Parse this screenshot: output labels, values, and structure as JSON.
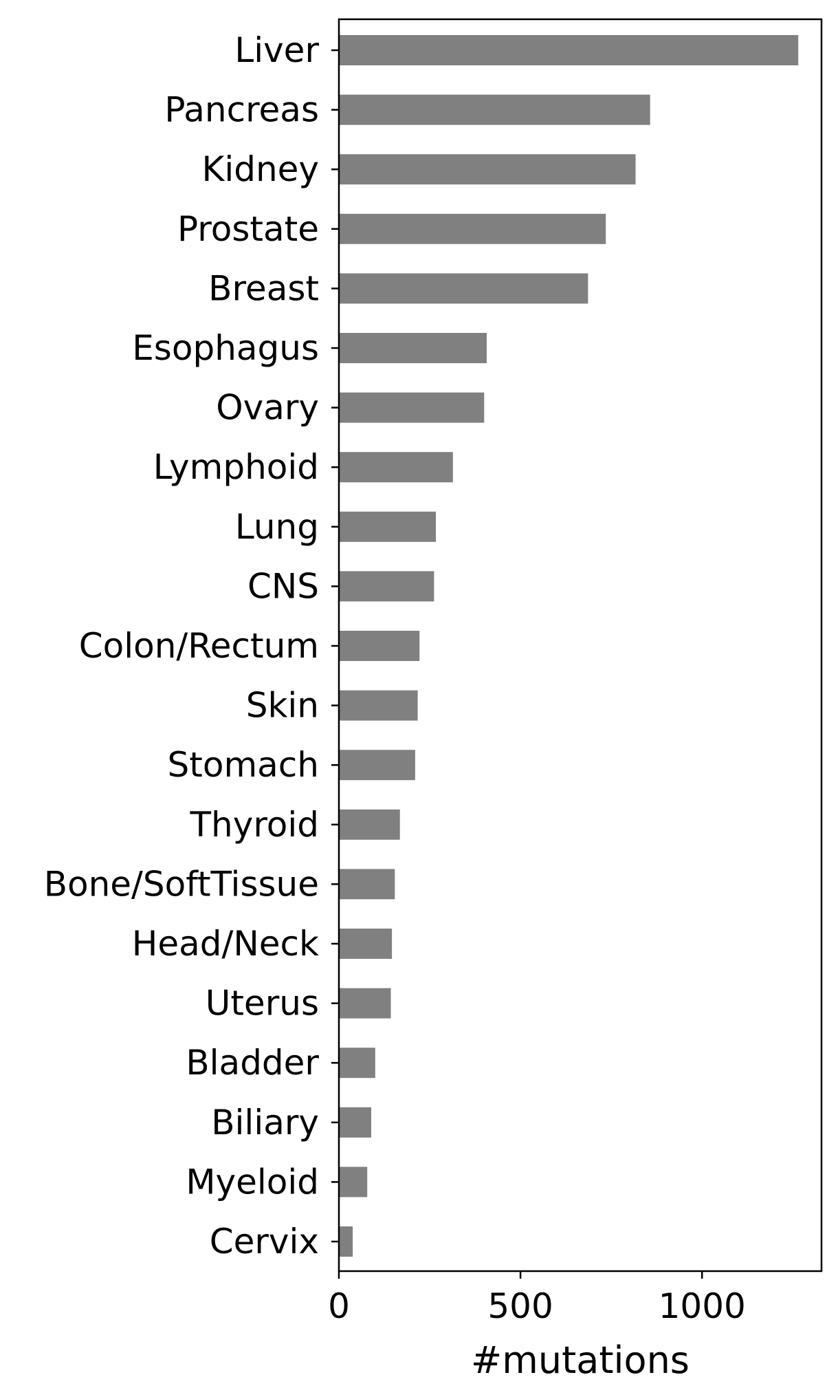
{
  "chart_data": {
    "type": "bar",
    "orientation": "horizontal",
    "categories": [
      "Liver",
      "Pancreas",
      "Kidney",
      "Prostate",
      "Breast",
      "Esophagus",
      "Ovary",
      "Lymphoid",
      "Lung",
      "CNS",
      "Colon/Rectum",
      "Skin",
      "Stomach",
      "Thyroid",
      "Bone/SoftTissue",
      "Head/Neck",
      "Uterus",
      "Bladder",
      "Biliary",
      "Myeloid",
      "Cervix"
    ],
    "values": [
      1265,
      857,
      817,
      735,
      686,
      407,
      400,
      314,
      267,
      262,
      222,
      217,
      210,
      168,
      154,
      146,
      143,
      100,
      89,
      78,
      38
    ],
    "xlabel": "#mutations",
    "ylabel": "",
    "xlim": [
      0,
      1329
    ],
    "xticks": [
      "0",
      "500",
      "1000"
    ],
    "bar_color": "#808080",
    "grid": false
  }
}
